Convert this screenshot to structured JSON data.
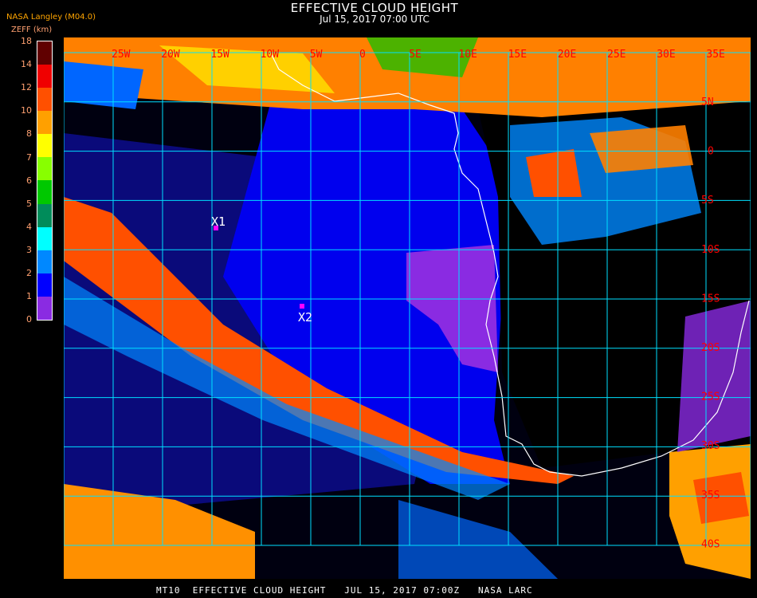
{
  "header": {
    "title": "EFFECTIVE CLOUD HEIGHT",
    "subtitle": "Jul 15, 2017 07:00 UTC",
    "org": "NASA Langley (M04.0)"
  },
  "colorbar": {
    "label": "ZEFF (km)",
    "ticks": [
      "18",
      "14",
      "12",
      "10",
      "8",
      "7",
      "6",
      "5",
      "4",
      "3",
      "2",
      "1",
      "0"
    ],
    "colors": [
      "#600000",
      "#f00000",
      "#ff5000",
      "#ffa000",
      "#ffff00",
      "#88ff00",
      "#00c800",
      "#008c5a",
      "#00ffff",
      "#0088ff",
      "#0000ff",
      "#8a2be2"
    ]
  },
  "map": {
    "lon_labels": [
      "25W",
      "20W",
      "15W",
      "10W",
      "5W",
      "0",
      "5E",
      "10E",
      "15E",
      "20E",
      "25E",
      "30E",
      "35E"
    ],
    "lat_labels": [
      "5N",
      "0",
      "5S",
      "10S",
      "15S",
      "20S",
      "25S",
      "30S",
      "35S",
      "40S"
    ],
    "grid_color": "#00e0ff",
    "label_color": "#ff0000",
    "coast_color": "#ffffff",
    "markers": [
      {
        "label": "X1",
        "color": "#ff00ff"
      },
      {
        "label": "X2",
        "color": "#ff00ff"
      }
    ]
  },
  "footer": "MT10  EFFECTIVE CLOUD HEIGHT   JUL 15, 2017 07:00Z   NASA LARC"
}
